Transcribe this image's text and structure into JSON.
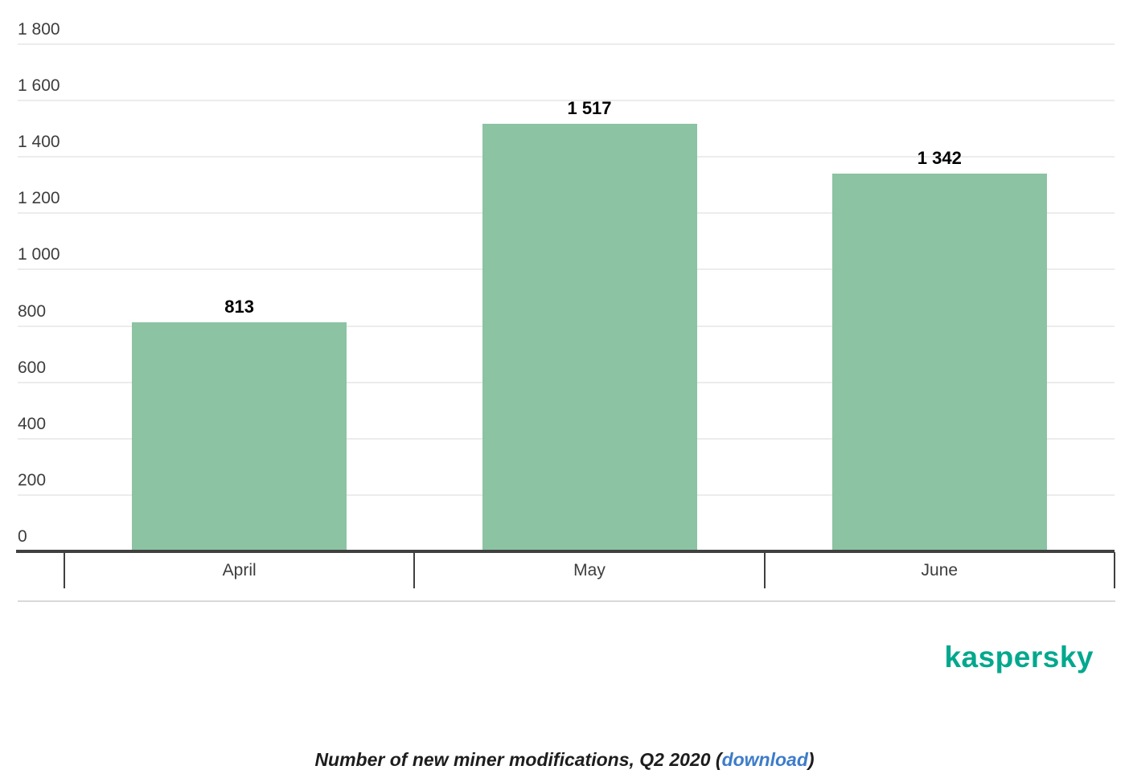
{
  "chart_data": {
    "type": "bar",
    "title": "",
    "categories": [
      "April",
      "May",
      "June"
    ],
    "values": [
      813,
      1517,
      1342
    ],
    "value_labels": [
      "813",
      "1 517",
      "1 342"
    ],
    "ylim": [
      0,
      1800
    ],
    "y_ticks": [
      {
        "value": 0,
        "label": "0"
      },
      {
        "value": 200,
        "label": "200"
      },
      {
        "value": 400,
        "label": "400"
      },
      {
        "value": 600,
        "label": "600"
      },
      {
        "value": 800,
        "label": "800"
      },
      {
        "value": 1000,
        "label": "1 000"
      },
      {
        "value": 1200,
        "label": "1 200"
      },
      {
        "value": 1400,
        "label": "1 400"
      },
      {
        "value": 1600,
        "label": "1 600"
      },
      {
        "value": 1800,
        "label": "1 800"
      }
    ],
    "grid": true,
    "legend": "none",
    "bar_color": "#8cc3a2",
    "axis_color": "#404040",
    "gridline_color": "#ececec",
    "label_color": "#3d3d3d"
  },
  "branding": {
    "logo_text": "kaspersky",
    "logo_color": "#00a88e"
  },
  "caption": {
    "text_before_link": "Number of new miner modifications, Q2 2020 (",
    "link_text": "download",
    "text_after_link": ")",
    "link_color": "#3d7cc9"
  }
}
